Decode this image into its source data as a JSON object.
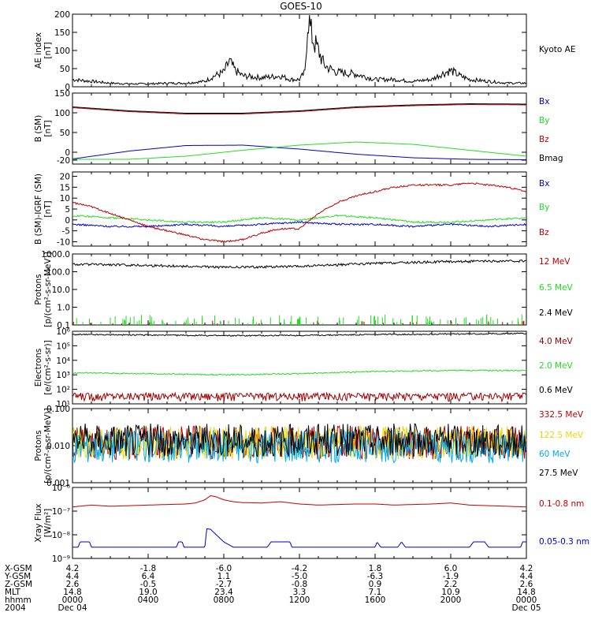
{
  "title": "GOES-10",
  "colors": {
    "black": "#000000",
    "blue": "#0000c8",
    "green": "#22dd22",
    "red": "#c00000",
    "darkred": "#a00000",
    "yellow": "#e8d800",
    "cyan": "#00aaee"
  },
  "x_axis": {
    "rows": [
      {
        "label": "X-GSM",
        "values": [
          "4.2",
          "-1.8",
          "-6.0",
          "-4.2",
          "1.8",
          "6.0",
          "4.2"
        ]
      },
      {
        "label": "Y-GSM",
        "values": [
          "4.4",
          "6.4",
          "1.1",
          "-5.0",
          "-6.3",
          "-1.9",
          "4.4"
        ]
      },
      {
        "label": "Z-GSM",
        "values": [
          "2.6",
          "-0.5",
          "-2.7",
          "-0.8",
          "0.9",
          "2.2",
          "2.6"
        ]
      },
      {
        "label": "MLT",
        "values": [
          "14.8",
          "19.0",
          "23.4",
          "3.3",
          "7.1",
          "10.9",
          "14.8"
        ]
      },
      {
        "label": "hhmm",
        "values": [
          "0000",
          "0400",
          "0800",
          "1200",
          "1600",
          "2000",
          "0000"
        ]
      },
      {
        "label": "2004",
        "values": [
          "Dec 04",
          "",
          "",
          "",
          "",
          "",
          "Dec 05"
        ]
      }
    ]
  },
  "chart_data": [
    {
      "type": "line",
      "id": "ae",
      "ylabel": [
        "AE index",
        "[nT]"
      ],
      "ylim": [
        0,
        200
      ],
      "yscale": "linear",
      "yticks": [
        0,
        50,
        100,
        150,
        200
      ],
      "ytick_labels": [
        "0",
        "50",
        "100",
        "150",
        "200"
      ],
      "series": [
        {
          "name": "Kyoto AE",
          "color": "#000000",
          "x": [
            0,
            1,
            2,
            3,
            4,
            5,
            6,
            7,
            7.5,
            8,
            8.3,
            8.6,
            9,
            10,
            11,
            11.5,
            12,
            12.3,
            12.45,
            12.6,
            12.8,
            13,
            13.3,
            13.6,
            14,
            15,
            16,
            17,
            18,
            19,
            19.5,
            20,
            20.5,
            21,
            22,
            23,
            24
          ],
          "values": [
            20,
            15,
            10,
            8,
            8,
            10,
            10,
            15,
            30,
            40,
            70,
            45,
            30,
            25,
            30,
            20,
            20,
            40,
            200,
            150,
            120,
            100,
            60,
            50,
            40,
            35,
            20,
            20,
            15,
            20,
            35,
            45,
            30,
            20,
            15,
            10,
            10
          ]
        }
      ]
    },
    {
      "type": "line",
      "id": "bsm",
      "ylabel": [
        "B (SM)",
        "[nT]"
      ],
      "ylim": [
        -30,
        150
      ],
      "yscale": "linear",
      "yticks": [
        -20,
        0,
        50,
        100,
        150
      ],
      "ytick_labels": [
        "-20",
        "0",
        "50",
        "100",
        "150"
      ],
      "series": [
        {
          "name": "Bx",
          "color": "#0000c8",
          "x": [
            0,
            3,
            6,
            9,
            12,
            15,
            18,
            21,
            24
          ],
          "values": [
            -17,
            3,
            17,
            18,
            8,
            -5,
            -14,
            -18,
            -19
          ]
        },
        {
          "name": "By",
          "color": "#22dd22",
          "x": [
            0,
            3,
            6,
            9,
            12,
            15,
            18,
            21,
            24
          ],
          "values": [
            -18,
            -18,
            -10,
            5,
            18,
            26,
            20,
            5,
            -10
          ]
        },
        {
          "name": "Bz",
          "color": "#c00000",
          "x": [
            0,
            3,
            6,
            9,
            12,
            15,
            18,
            21,
            24
          ],
          "values": [
            113,
            103,
            97,
            97,
            103,
            113,
            118,
            121,
            120
          ]
        },
        {
          "name": "Bmag",
          "color": "#000000",
          "x": [
            0,
            3,
            6,
            9,
            12,
            15,
            18,
            21,
            24
          ],
          "values": [
            115,
            105,
            99,
            99,
            105,
            115,
            120,
            123,
            122
          ]
        }
      ]
    },
    {
      "type": "line",
      "id": "bdiff",
      "ylabel": [
        "B (SM)-IGRF (SM)",
        "[nT]"
      ],
      "ylim": [
        -12,
        22
      ],
      "yscale": "linear",
      "yticks": [
        -10,
        -5,
        0,
        5,
        10,
        15,
        20
      ],
      "ytick_labels": [
        "-10",
        "-5",
        "0",
        "5",
        "10",
        "15",
        "20"
      ],
      "series": [
        {
          "name": "Bx",
          "color": "#0000c8",
          "x": [
            0,
            2,
            4,
            6,
            8,
            10,
            12,
            14,
            16,
            18,
            20,
            22,
            24
          ],
          "values": [
            -2,
            -3,
            -3,
            -2,
            -3,
            -2,
            -1,
            -2,
            -2,
            -3,
            -2,
            -3,
            -2
          ]
        },
        {
          "name": "By",
          "color": "#22dd22",
          "x": [
            0,
            2,
            4,
            6,
            8,
            10,
            12,
            14,
            16,
            18,
            20,
            22,
            24
          ],
          "values": [
            2,
            1,
            0,
            -1,
            -1,
            1,
            0,
            2,
            1,
            -1,
            -1,
            0,
            1
          ]
        },
        {
          "name": "Bz",
          "color": "#c00000",
          "x": [
            0,
            1,
            2,
            3,
            4,
            5,
            6,
            7,
            8,
            9,
            10,
            11,
            12,
            13,
            14,
            15,
            16,
            17,
            18,
            19,
            20,
            21,
            22,
            23,
            24
          ],
          "values": [
            8,
            6,
            3,
            0,
            -3,
            -5,
            -7,
            -9,
            -10,
            -9,
            -6,
            -4,
            -4,
            3,
            8,
            11,
            13,
            15,
            16,
            16,
            16,
            17,
            16,
            15,
            13
          ]
        }
      ]
    },
    {
      "type": "line",
      "id": "protons",
      "ylabel": [
        "Protons",
        "[p/(cm²-s-sr-MeV)]"
      ],
      "ylim": [
        0.1,
        1000
      ],
      "yscale": "log",
      "yticks": [
        0.1,
        1,
        10,
        100,
        1000
      ],
      "ytick_labels": [
        "0.1",
        "1.0",
        "10.0",
        "100.0",
        "1000.0"
      ],
      "series": [
        {
          "name": "12 MeV",
          "color": "#c00000",
          "x": [
            0,
            24
          ],
          "values": [
            0.1,
            0.1
          ]
        },
        {
          "name": "6.5 MeV",
          "color": "#22dd22",
          "x": [
            0,
            24
          ],
          "values": [
            0.1,
            0.1
          ]
        },
        {
          "name": "2.4 MeV",
          "color": "#000000",
          "x": [
            0,
            4,
            8,
            12,
            16,
            20,
            24
          ],
          "values": [
            270,
            230,
            180,
            200,
            300,
            380,
            400
          ]
        }
      ]
    },
    {
      "type": "line",
      "id": "electrons",
      "ylabel": [
        "Electrons",
        "[e/(cm²-s-sr)]"
      ],
      "ylim": [
        10,
        1000000
      ],
      "yscale": "log",
      "yticks": [
        10,
        100,
        1000,
        10000,
        100000,
        1000000
      ],
      "ytick_labels": [
        "10¹",
        "10²",
        "10³",
        "10⁴",
        "10⁵",
        "10⁶"
      ],
      "series": [
        {
          "name": "4.0 MeV",
          "color": "#a00000",
          "x": [
            0,
            24
          ],
          "values": [
            30,
            30
          ]
        },
        {
          "name": "2.0 MeV",
          "color": "#22dd22",
          "x": [
            0,
            4,
            8,
            12,
            16,
            20,
            24
          ],
          "values": [
            1400,
            1200,
            1000,
            1200,
            1700,
            2000,
            2000
          ]
        },
        {
          "name": "0.6 MeV",
          "color": "#000000",
          "x": [
            0,
            4,
            8,
            12,
            16,
            20,
            24
          ],
          "values": [
            600000,
            550000,
            500000,
            520000,
            600000,
            650000,
            700000
          ]
        }
      ]
    },
    {
      "type": "line",
      "id": "hiprotons",
      "ylabel": [
        "Protons",
        "[p/(cm²-s-sr-MeV)]"
      ],
      "ylim": [
        0.001,
        0.1
      ],
      "yscale": "log",
      "yticks": [
        0.001,
        0.01,
        0.1
      ],
      "ytick_labels": [
        "0.001",
        "0.010",
        "0.100"
      ],
      "series": [
        {
          "name": "332.5 MeV",
          "color": "#c00000",
          "x": [
            0,
            24
          ],
          "values": [
            0.012,
            0.012
          ]
        },
        {
          "name": "122.5 MeV",
          "color": "#e8d800",
          "x": [
            0,
            24
          ],
          "values": [
            0.012,
            0.012
          ]
        },
        {
          "name": "60 MeV",
          "color": "#00aaee",
          "x": [
            0,
            24
          ],
          "values": [
            0.01,
            0.01
          ]
        },
        {
          "name": "27.5 MeV",
          "color": "#000000",
          "x": [
            0,
            24
          ],
          "values": [
            0.015,
            0.015
          ]
        }
      ]
    },
    {
      "type": "line",
      "id": "xray",
      "ylabel": [
        "Xray Flux",
        "[W/m²]"
      ],
      "ylim": [
        1e-09,
        1e-06
      ],
      "yscale": "log",
      "yticks": [
        1e-09,
        1e-08,
        1e-07,
        1e-06
      ],
      "ytick_labels": [
        "10⁻⁹",
        "10⁻⁸",
        "10⁻⁷",
        "10⁻⁶"
      ],
      "series": [
        {
          "name": "0.1-0.8 nm",
          "color": "#c00000",
          "x": [
            0,
            1,
            2,
            3,
            4,
            5,
            6,
            6.5,
            7,
            7.3,
            7.6,
            8,
            8.5,
            9,
            10,
            11,
            12,
            13,
            14,
            15,
            16,
            17,
            18,
            19,
            20,
            21,
            22,
            23,
            24
          ],
          "values": [
            1.5e-07,
            1.8e-07,
            1.6e-07,
            1.7e-07,
            1.8e-07,
            1.9e-07,
            2e-07,
            2.2e-07,
            3e-07,
            4.5e-07,
            4e-07,
            3e-07,
            2.5e-07,
            2.3e-07,
            2.2e-07,
            2.5e-07,
            2e-07,
            1.8e-07,
            1.9e-07,
            2e-07,
            2e-07,
            1.8e-07,
            1.9e-07,
            2e-07,
            2.2e-07,
            1.8e-07,
            1.7e-07,
            1.6e-07,
            1.5e-07
          ]
        },
        {
          "name": "0.05-0.3 nm",
          "color": "#0000c8",
          "x": [
            0,
            0.3,
            0.4,
            0.9,
            1.0,
            5.5,
            5.6,
            5.8,
            5.9,
            7.0,
            7.1,
            7.3,
            7.6,
            8.0,
            8.5,
            8.6,
            10.3,
            10.5,
            11.5,
            11.6,
            16,
            16.1,
            16.3,
            17.2,
            17.4,
            17.6,
            21.0,
            21.2,
            21.8,
            22.0,
            23.7,
            23.8,
            24
          ],
          "values": [
            3e-09,
            3e-09,
            5e-09,
            5e-09,
            3e-09,
            3e-09,
            5e-09,
            5e-09,
            3e-09,
            3e-09,
            1.8e-08,
            1.7e-08,
            1e-08,
            5e-09,
            3e-09,
            3e-09,
            3e-09,
            5e-09,
            5e-09,
            3e-09,
            3e-09,
            5e-09,
            3e-09,
            3e-09,
            5e-09,
            3e-09,
            3e-09,
            5e-09,
            5e-09,
            3e-09,
            3e-09,
            5e-09,
            5e-09
          ]
        }
      ]
    }
  ]
}
